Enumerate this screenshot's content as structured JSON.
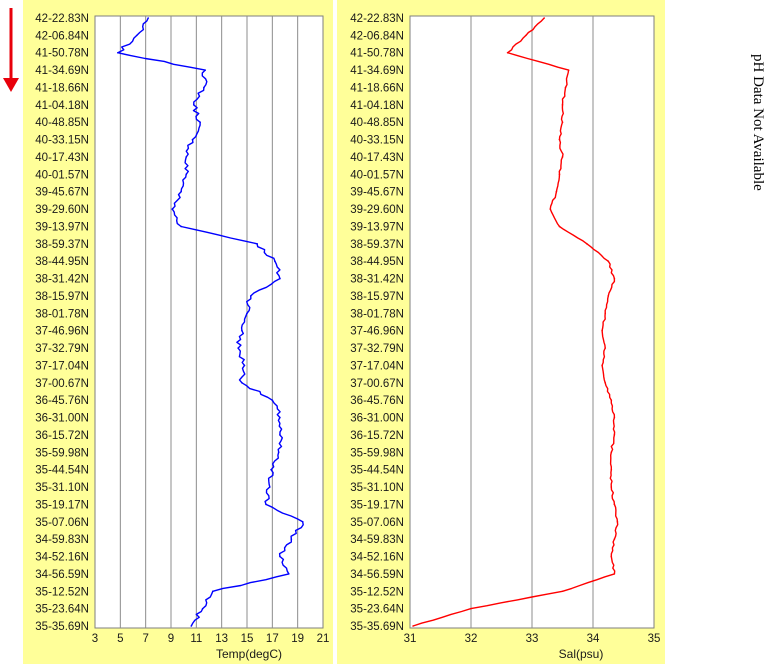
{
  "side_note": "pH Data Not Available",
  "colors": {
    "panel_bg": "#FFFF99",
    "plot_bg": "#FFFFFF",
    "gridline": "#8C8C8C",
    "temp_line": "#0000FF",
    "sal_line": "#FF0000",
    "arrow": "#E8000B"
  },
  "icons": {
    "direction_arrow": "down-arrow-icon"
  },
  "chart_data": [
    {
      "type": "line",
      "xlabel": "Temp(degC)",
      "ylabel": "",
      "xlim": [
        3,
        21
      ],
      "x_ticks": [
        3,
        5,
        7,
        9,
        11,
        13,
        15,
        17,
        19,
        21
      ],
      "grid": true,
      "categories": [
        "42-22.83N",
        "42-06.84N",
        "41-50.78N",
        "41-34.69N",
        "41-18.66N",
        "41-04.18N",
        "40-48.85N",
        "40-33.15N",
        "40-17.43N",
        "40-01.57N",
        "39-45.67N",
        "39-29.60N",
        "39-13.97N",
        "38-59.37N",
        "38-44.95N",
        "38-31.42N",
        "38-15.97N",
        "38-01.78N",
        "37-46.96N",
        "37-32.79N",
        "37-17.04N",
        "37-00.67N",
        "36-45.76N",
        "36-31.00N",
        "36-15.72N",
        "35-59.98N",
        "35-44.54N",
        "35-31.10N",
        "35-19.17N",
        "35-07.06N",
        "34-59.83N",
        "34-52.16N",
        "34-56.59N",
        "35-12.52N",
        "35-23.64N",
        "35-35.69N"
      ],
      "series": [
        {
          "values": [
            7.2,
            6.3,
            4.8,
            11.7,
            11.6,
            10.8,
            11.3,
            10.7,
            10.2,
            10.2,
            9.8,
            9.1,
            9.8,
            15.8,
            17.2,
            17.6,
            15.3,
            15.0,
            14.6,
            14.3,
            14.8,
            14.6,
            17.0,
            17.6,
            17.6,
            17.5,
            16.9,
            16.8,
            16.5,
            19.4,
            18.5,
            17.6,
            18.3,
            12.3,
            11.5,
            10.6
          ]
        }
      ]
    },
    {
      "type": "line",
      "xlabel": "Sal(psu)",
      "ylabel": "",
      "xlim": [
        31,
        35
      ],
      "x_ticks": [
        31,
        32,
        33,
        34,
        35
      ],
      "grid": true,
      "categories": [
        "42-22.83N",
        "42-06.84N",
        "41-50.78N",
        "41-34.69N",
        "41-18.66N",
        "41-04.18N",
        "40-48.85N",
        "40-33.15N",
        "40-17.43N",
        "40-01.57N",
        "39-45.67N",
        "39-29.60N",
        "39-13.97N",
        "38-59.37N",
        "38-44.95N",
        "38-31.42N",
        "38-15.97N",
        "38-01.78N",
        "37-46.96N",
        "37-32.79N",
        "37-17.04N",
        "37-00.67N",
        "36-45.76N",
        "36-31.00N",
        "36-15.72N",
        "35-59.98N",
        "35-44.54N",
        "35-31.10N",
        "35-19.17N",
        "35-07.06N",
        "34-59.83N",
        "34-52.16N",
        "34-56.59N",
        "35-12.52N",
        "35-23.64N",
        "35-35.69N"
      ],
      "series": [
        {
          "values": [
            33.2,
            32.9,
            32.6,
            33.6,
            33.55,
            33.5,
            33.5,
            33.45,
            33.5,
            33.45,
            33.4,
            33.3,
            33.45,
            33.9,
            34.25,
            34.35,
            34.25,
            34.2,
            34.15,
            34.2,
            34.15,
            34.2,
            34.3,
            34.35,
            34.35,
            34.3,
            34.3,
            34.3,
            34.35,
            34.4,
            34.35,
            34.3,
            34.35,
            33.5,
            32.0,
            31.05
          ]
        }
      ]
    }
  ]
}
